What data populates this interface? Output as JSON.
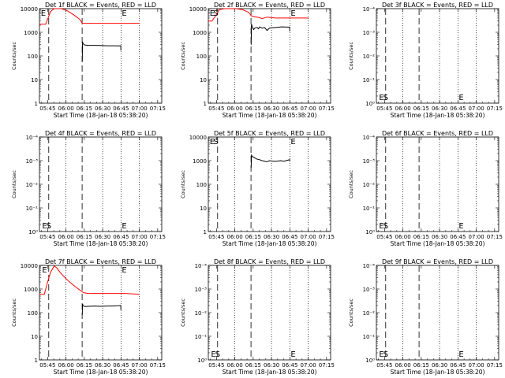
{
  "common": {
    "xlabel": "Start Time (18-Jan-18 05:38:20)",
    "ylabel": "Counts/sec",
    "x_ticks": [
      "05:45",
      "06:00",
      "06:15",
      "06:30",
      "06:45",
      "07:00",
      "07:15"
    ],
    "x_tick_minutes": [
      6.67,
      21.67,
      36.67,
      51.67,
      66.67,
      81.67,
      96.67
    ],
    "xlim_minutes": [
      0,
      100
    ],
    "ylim": [
      1,
      10000
    ],
    "y_scale": "log",
    "y_ticks_default": [
      "1",
      "10",
      "100",
      "1000",
      "10000"
    ],
    "y_ticks_zero": [
      "10⁰",
      "10⁻¹",
      "10⁻²",
      "10⁻³",
      "10⁻⁴"
    ],
    "dashed_lines_minutes": [
      7.6,
      34.9
    ],
    "dotted_lines_minutes": [
      21.67,
      51.67,
      66.67,
      81.67
    ],
    "colors": {
      "events": "#000000",
      "lld": "#ff0000"
    }
  },
  "chart_data": [
    {
      "title": "Det 1f BLACK = Events, RED = LLD",
      "type": "line",
      "y_tick_set": "default",
      "markers": [
        {
          "label": "E",
          "x": 0.5
        },
        {
          "label": "E",
          "x": 66.7
        }
      ],
      "series": [
        {
          "name": "LLD",
          "color": "#ff0000",
          "x": [
            0,
            5,
            7,
            9,
            12,
            14,
            18,
            23,
            28,
            33,
            35,
            40,
            60,
            82
          ],
          "y": [
            2200,
            2200,
            4000,
            7500,
            10000,
            10000,
            10000,
            8000,
            5500,
            3500,
            2400,
            2400,
            2400,
            2400
          ]
        },
        {
          "name": "Events",
          "color": "#000000",
          "x": [
            35,
            35.2,
            35.6,
            37,
            40,
            45,
            50,
            55,
            60,
            64,
            66.5,
            66.6
          ],
          "y": [
            60,
            400,
            330,
            290,
            280,
            280,
            275,
            270,
            270,
            265,
            270,
            170
          ]
        }
      ]
    },
    {
      "title": "Det 2f BLACK = Events, RED = LLD",
      "type": "line",
      "y_tick_set": "default",
      "markers": [
        {
          "label": "E",
          "x": 0.5
        },
        {
          "label": "S",
          "x": 3.5
        },
        {
          "label": "E",
          "x": 66.7
        }
      ],
      "series": [
        {
          "name": "LLD",
          "color": "#ff0000",
          "x": [
            0,
            3,
            6,
            9,
            13,
            18,
            23,
            28,
            33,
            35,
            38,
            41,
            44,
            48,
            55,
            65,
            75,
            82
          ],
          "y": [
            3000,
            3000,
            5000,
            9000,
            10000,
            10000,
            10000,
            9000,
            7000,
            5000,
            4500,
            4300,
            3800,
            4400,
            4000,
            4000,
            4000,
            4000
          ]
        },
        {
          "name": "Events",
          "color": "#000000",
          "x": [
            35,
            35.3,
            36,
            37,
            38,
            40,
            41,
            42,
            44,
            46,
            48,
            50,
            55,
            60,
            66.5,
            66.6
          ],
          "y": [
            300,
            2200,
            1700,
            1300,
            1500,
            1600,
            1400,
            1700,
            1500,
            1600,
            1200,
            1500,
            1600,
            1700,
            1650,
            1100
          ]
        }
      ]
    },
    {
      "title": "Det 3f BLACK = Events, RED = LLD",
      "type": "line",
      "y_tick_set": "zero",
      "markers": [
        {
          "label": "E",
          "x": 1.5
        },
        {
          "label": "S",
          "x": 5.0
        },
        {
          "label": "E",
          "x": 66.7
        }
      ],
      "series": []
    },
    {
      "title": "Det 4f BLACK = Events, RED = LLD",
      "type": "line",
      "y_tick_set": "zero",
      "markers": [
        {
          "label": "E",
          "x": 1.5
        },
        {
          "label": "S",
          "x": 5.0
        },
        {
          "label": "E",
          "x": 66.7
        }
      ],
      "series": []
    },
    {
      "title": "Det 5f BLACK = Events, RED = LLD",
      "type": "line",
      "y_tick_set": "default",
      "markers": [
        {
          "label": "E",
          "x": 0.5
        },
        {
          "label": "S",
          "x": 3.5
        },
        {
          "label": "E",
          "x": 66.7
        }
      ],
      "series": [
        {
          "name": "Events",
          "color": "#000000",
          "x": [
            35,
            35.3,
            36,
            38,
            40,
            42,
            44,
            46,
            48,
            50,
            53,
            56,
            59,
            62,
            65,
            66.5,
            66.6
          ],
          "y": [
            500,
            1700,
            1500,
            1300,
            1150,
            1100,
            1000,
            950,
            900,
            1000,
            950,
            950,
            1000,
            950,
            1050,
            1100,
            950
          ]
        }
      ]
    },
    {
      "title": "Det 6f BLACK = Events, RED = LLD",
      "type": "line",
      "y_tick_set": "zero",
      "markers": [
        {
          "label": "E",
          "x": 1.5
        },
        {
          "label": "S",
          "x": 5.0
        },
        {
          "label": "E",
          "x": 66.7
        }
      ],
      "series": []
    },
    {
      "title": "Det 7f BLACK = Events, RED = LLD",
      "type": "line",
      "y_tick_set": "default",
      "markers": [
        {
          "label": "E",
          "x": 1.5
        },
        {
          "label": "E",
          "x": 66.7
        }
      ],
      "series": [
        {
          "name": "LLD",
          "color": "#ff0000",
          "x": [
            0,
            4,
            6,
            9,
            12,
            14,
            17,
            21,
            25,
            29,
            33,
            36,
            40,
            50,
            60,
            70,
            82
          ],
          "y": [
            600,
            600,
            1500,
            5000,
            9500,
            8000,
            5000,
            3000,
            1900,
            1300,
            900,
            700,
            650,
            650,
            650,
            650,
            600
          ]
        },
        {
          "name": "Events",
          "color": "#000000",
          "x": [
            35,
            35.2,
            35.7,
            37,
            40,
            45,
            50,
            55,
            60,
            64,
            66.5,
            66.6
          ],
          "y": [
            80,
            230,
            200,
            180,
            185,
            190,
            185,
            190,
            190,
            195,
            200,
            130
          ]
        }
      ]
    },
    {
      "title": "Det 8f BLACK = Events, RED = LLD",
      "type": "line",
      "y_tick_set": "zero",
      "markers": [
        {
          "label": "E",
          "x": 1.5
        },
        {
          "label": "S",
          "x": 5.0
        },
        {
          "label": "E",
          "x": 66.7
        }
      ],
      "series": []
    },
    {
      "title": "Det 9f BLACK = Events, RED = LLD",
      "type": "line",
      "y_tick_set": "zero",
      "markers": [
        {
          "label": "E",
          "x": 1.5
        },
        {
          "label": "S",
          "x": 5.0
        },
        {
          "label": "E",
          "x": 66.7
        }
      ],
      "series": []
    }
  ]
}
